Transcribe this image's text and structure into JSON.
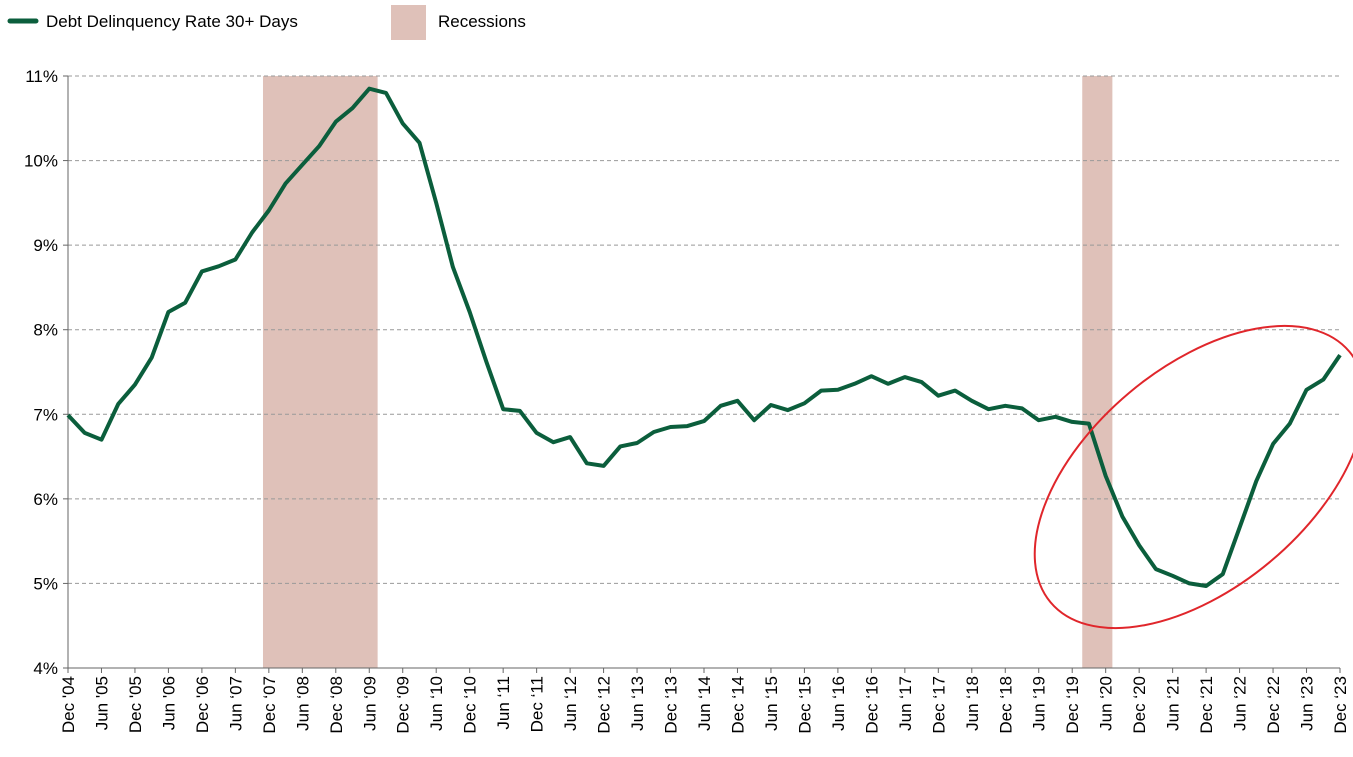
{
  "chart_data": {
    "type": "line",
    "categories": [
      "Dec '04",
      null,
      "Jun '05",
      null,
      "Dec '05",
      null,
      "Jun '06",
      null,
      "Dec '06",
      null,
      "Jun ‘07",
      null,
      "Dec ‘07",
      null,
      "Jun ‘08",
      null,
      "Dec ‘08",
      null,
      "Jun ‘09",
      null,
      "Dec ‘09",
      null,
      "Jun ‘10",
      null,
      "Dec ‘10",
      null,
      "Jun ‘11",
      null,
      "Dec ‘11",
      null,
      "Jun ‘12",
      null,
      "Dec ‘12",
      null,
      "Jun ‘13",
      null,
      "Dec ‘13",
      null,
      "Jun ‘14",
      null,
      "Dec ‘14",
      null,
      "Jun ‘15",
      null,
      "Dec ‘15",
      null,
      "Jun ‘16",
      null,
      "Dec ‘16",
      null,
      "Jun ‘17",
      null,
      "Dec ‘17",
      null,
      "Jun ‘18",
      null,
      "Dec ‘18",
      null,
      "Jun ‘19",
      null,
      "Dec ‘19",
      null,
      "Jun ‘20",
      null,
      "Dec ‘20",
      null,
      "Jun ‘21",
      null,
      "Dec ‘21",
      null,
      "Jun ‘22",
      null,
      "Dec ‘22",
      null,
      "Jun ‘23",
      null,
      "Dec ‘23"
    ],
    "series": [
      {
        "name": "Debt Delinquency Rate 30+ Days",
        "color": "#0b5e3c",
        "values": [
          6.99,
          6.78,
          6.7,
          7.12,
          7.35,
          7.67,
          8.21,
          8.32,
          8.69,
          8.75,
          8.83,
          9.15,
          9.41,
          9.73,
          9.95,
          10.17,
          10.46,
          10.62,
          10.85,
          10.8,
          10.44,
          10.21,
          9.5,
          8.74,
          8.21,
          7.62,
          7.06,
          7.04,
          6.78,
          6.67,
          6.73,
          6.42,
          6.39,
          6.62,
          6.66,
          6.79,
          6.85,
          6.86,
          6.92,
          7.1,
          7.16,
          6.93,
          7.11,
          7.05,
          7.13,
          7.28,
          7.29,
          7.36,
          7.45,
          7.36,
          7.44,
          7.38,
          7.22,
          7.28,
          7.16,
          7.06,
          7.1,
          7.07,
          6.93,
          6.97,
          6.91,
          6.89,
          6.27,
          5.79,
          5.45,
          5.17,
          5.09,
          5.0,
          4.97,
          5.11,
          5.66,
          6.21,
          6.65,
          6.89,
          7.29,
          7.41,
          7.7
        ]
      }
    ],
    "recessions": {
      "name": "Recessions",
      "color": "#dfc1b9",
      "spans": [
        [
          11.65,
          18.5
        ],
        [
          60.6,
          62.4
        ]
      ]
    },
    "ylim": [
      4,
      11
    ],
    "yticks": [
      {
        "value": 4,
        "label": "4%"
      },
      {
        "value": 5,
        "label": "5%"
      },
      {
        "value": 6,
        "label": "6%"
      },
      {
        "value": 7,
        "label": "7%"
      },
      {
        "value": 8,
        "label": "8%"
      },
      {
        "value": 9,
        "label": "9%"
      },
      {
        "value": 10,
        "label": "10%"
      },
      {
        "value": 11,
        "label": "11%"
      }
    ],
    "grid": true
  }
}
